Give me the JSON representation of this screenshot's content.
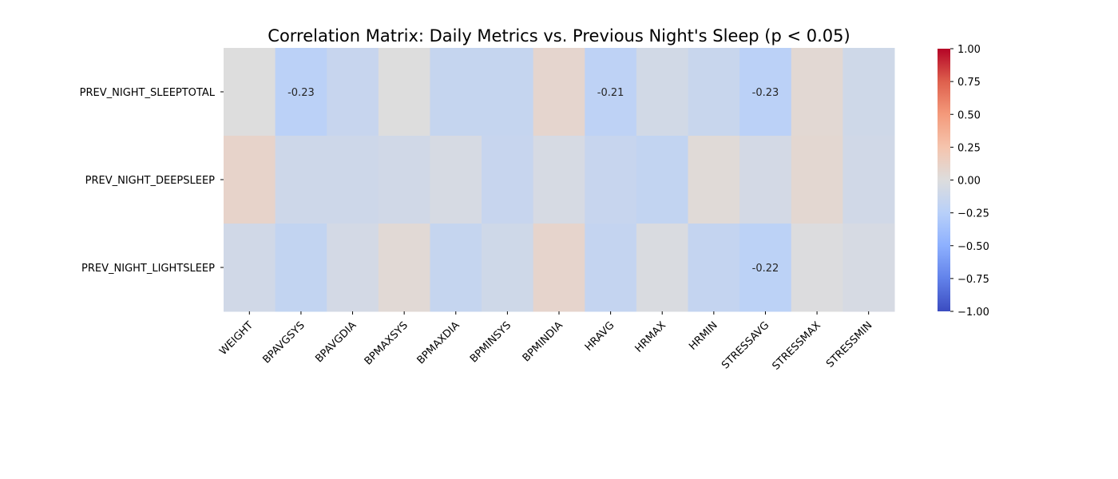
{
  "chart_data": {
    "type": "heatmap",
    "title": "Correlation Matrix: Daily Metrics vs. Previous Night's Sleep (p < 0.05)",
    "rows": [
      "PREV_NIGHT_SLEEPTOTAL",
      "PREV_NIGHT_DEEPSLEEP",
      "PREV_NIGHT_LIGHTSLEEP"
    ],
    "columns": [
      "WEIGHT",
      "BPAVGSYS",
      "BPAVGDIA",
      "BPMAXSYS",
      "BPMAXDIA",
      "BPMINSYS",
      "BPMINDIA",
      "HRAVG",
      "HRMAX",
      "HRMIN",
      "STRESSAVG",
      "STRESSMAX",
      "STRESSMIN"
    ],
    "values": [
      [
        0.0,
        -0.23,
        -0.15,
        0.0,
        -0.16,
        -0.16,
        0.08,
        -0.21,
        -0.08,
        -0.14,
        -0.23,
        0.05,
        -0.1
      ],
      [
        0.1,
        -0.11,
        -0.11,
        -0.09,
        -0.05,
        -0.15,
        -0.05,
        -0.15,
        -0.18,
        0.03,
        -0.07,
        0.06,
        -0.09
      ],
      [
        -0.09,
        -0.18,
        -0.07,
        0.04,
        -0.16,
        -0.1,
        0.09,
        -0.17,
        -0.03,
        -0.17,
        -0.22,
        -0.01,
        -0.05
      ]
    ],
    "annotations": [
      {
        "row": 0,
        "col": 1,
        "text": "-0.23"
      },
      {
        "row": 0,
        "col": 7,
        "text": "-0.21"
      },
      {
        "row": 0,
        "col": 10,
        "text": "-0.23"
      },
      {
        "row": 2,
        "col": 10,
        "text": "-0.22"
      }
    ],
    "colormap": "coolwarm",
    "vmin": -1.0,
    "vmax": 1.0,
    "colorbar_ticks": [
      "1.00",
      "0.75",
      "0.50",
      "0.25",
      "0.00",
      "−0.25",
      "−0.50",
      "−0.75",
      "−1.00"
    ],
    "colorbar_values": [
      1.0,
      0.75,
      0.5,
      0.25,
      0.0,
      -0.25,
      -0.5,
      -0.75,
      -1.0
    ]
  }
}
